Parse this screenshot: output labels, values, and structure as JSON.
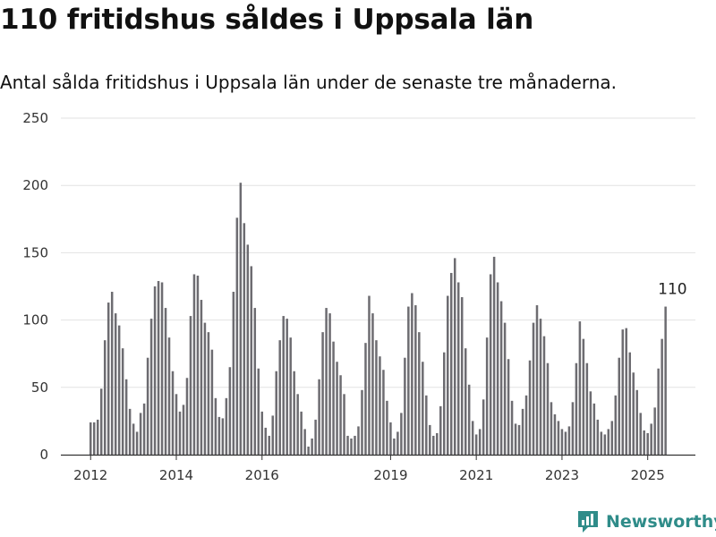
{
  "title": "110 fritidshus såldes i Uppsala län",
  "subtitle": "Antal sålda fritidshus i Uppsala län under de senaste tre månaderna.",
  "brand": {
    "name": "Newsworthy",
    "color": "#2f8c89"
  },
  "colors": {
    "bar": "#6d6c71",
    "highlight": "#1a9c93",
    "grid": "#e2e2e2",
    "axis": "#555555",
    "text": "#333333"
  },
  "chart_data": {
    "type": "bar",
    "xlabel": "",
    "ylabel": "",
    "ylim": [
      0,
      250
    ],
    "yticks": [
      0,
      50,
      100,
      150,
      200,
      250
    ],
    "grid": true,
    "x_start": "2012-01",
    "xticks": [
      {
        "label": "2012",
        "index": 0
      },
      {
        "label": "2014",
        "index": 24
      },
      {
        "label": "2016",
        "index": 48
      },
      {
        "label": "2019",
        "index": 84
      },
      {
        "label": "2021",
        "index": 108
      },
      {
        "label": "2023",
        "index": 132
      },
      {
        "label": "2025",
        "index": 156
      }
    ],
    "values": [
      24,
      24,
      26,
      49,
      85,
      113,
      121,
      105,
      96,
      79,
      56,
      34,
      23,
      17,
      31,
      38,
      72,
      101,
      125,
      129,
      128,
      109,
      87,
      62,
      45,
      32,
      37,
      57,
      103,
      134,
      133,
      115,
      98,
      91,
      78,
      42,
      28,
      27,
      42,
      65,
      121,
      176,
      202,
      172,
      156,
      140,
      109,
      64,
      32,
      20,
      14,
      29,
      62,
      85,
      103,
      101,
      87,
      62,
      45,
      32,
      19,
      6,
      12,
      26,
      56,
      91,
      109,
      105,
      84,
      69,
      59,
      45,
      14,
      12,
      14,
      21,
      48,
      83,
      118,
      105,
      85,
      73,
      63,
      40,
      24,
      12,
      17,
      31,
      72,
      110,
      120,
      111,
      91,
      69,
      44,
      22,
      14,
      16,
      36,
      76,
      118,
      135,
      146,
      128,
      117,
      79,
      52,
      25,
      15,
      19,
      41,
      87,
      134,
      147,
      128,
      114,
      98,
      71,
      40,
      23,
      22,
      34,
      44,
      70,
      98,
      111,
      101,
      88,
      68,
      39,
      30,
      25,
      19,
      17,
      21,
      39,
      68,
      99,
      86,
      68,
      47,
      38,
      26,
      17,
      15,
      19,
      25,
      44,
      72,
      93,
      94,
      76,
      61,
      48,
      31,
      18,
      16,
      23,
      35,
      64,
      86,
      110
    ],
    "highlight": {
      "index": 163,
      "value": 110,
      "label": "110"
    }
  }
}
